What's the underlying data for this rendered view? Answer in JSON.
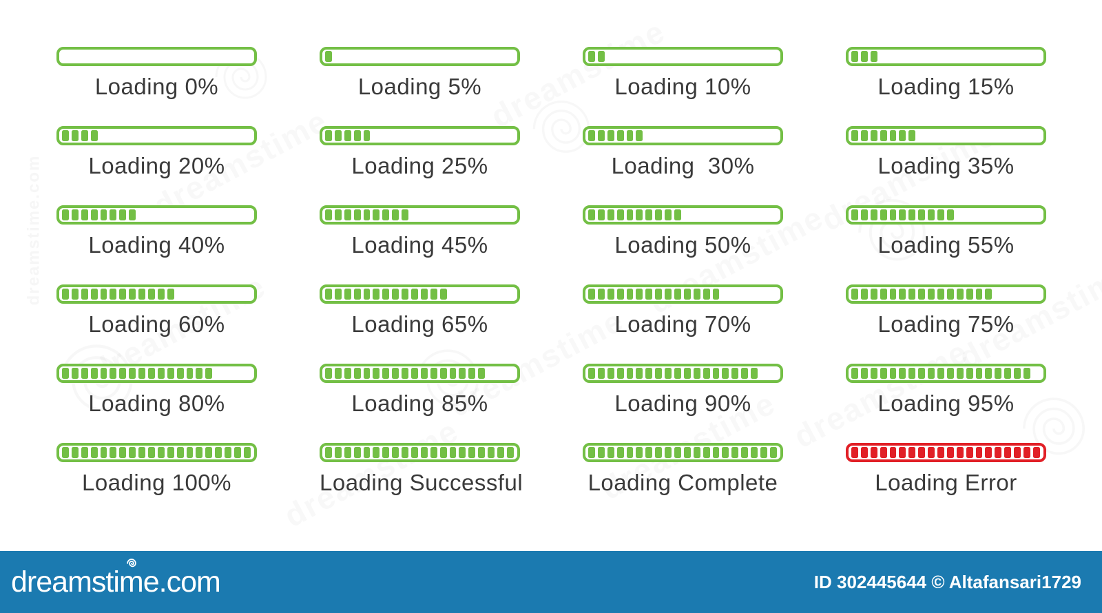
{
  "colors": {
    "green": "#73bf45",
    "red": "#e11f26",
    "label_text": "#3a3a3a",
    "footer_blue": "#1b7ab0",
    "white": "#ffffff"
  },
  "progress_bars": {
    "segments_total": 20,
    "items": [
      {
        "label": "Loading 0%",
        "filled": 0,
        "color": "green"
      },
      {
        "label": "Loading 5%",
        "filled": 1,
        "color": "green"
      },
      {
        "label": "Loading 10%",
        "filled": 2,
        "color": "green"
      },
      {
        "label": "Loading 15%",
        "filled": 3,
        "color": "green"
      },
      {
        "label": "Loading 20%",
        "filled": 4,
        "color": "green"
      },
      {
        "label": "Loading 25%",
        "filled": 5,
        "color": "green"
      },
      {
        "label": "Loading  30%",
        "filled": 6,
        "color": "green"
      },
      {
        "label": "Loading 35%",
        "filled": 7,
        "color": "green"
      },
      {
        "label": "Loading 40%",
        "filled": 8,
        "color": "green"
      },
      {
        "label": "Loading 45%",
        "filled": 9,
        "color": "green"
      },
      {
        "label": "Loading 50%",
        "filled": 10,
        "color": "green"
      },
      {
        "label": "Loading 55%",
        "filled": 11,
        "color": "green"
      },
      {
        "label": "Loading 60%",
        "filled": 12,
        "color": "green"
      },
      {
        "label": "Loading 65%",
        "filled": 13,
        "color": "green"
      },
      {
        "label": "Loading 70%",
        "filled": 14,
        "color": "green"
      },
      {
        "label": "Loading 75%",
        "filled": 15,
        "color": "green"
      },
      {
        "label": "Loading 80%",
        "filled": 16,
        "color": "green"
      },
      {
        "label": "Loading 85%",
        "filled": 17,
        "color": "green"
      },
      {
        "label": "Loading 90%",
        "filled": 18,
        "color": "green"
      },
      {
        "label": "Loading 95%",
        "filled": 19,
        "color": "green"
      },
      {
        "label": "Loading 100%",
        "filled": 20,
        "color": "green"
      },
      {
        "label": "Loading Successful",
        "filled": 20,
        "color": "green"
      },
      {
        "label": "Loading Complete",
        "filled": 20,
        "color": "green"
      },
      {
        "label": "Loading Error",
        "filled": 20,
        "color": "red"
      }
    ]
  },
  "footer": {
    "brand": "dreamstime.com",
    "credit": "ID 302445644 © Altafansari1729"
  },
  "watermark": {
    "text": "dreamstime",
    "edge_text": "dreamstime.com"
  }
}
